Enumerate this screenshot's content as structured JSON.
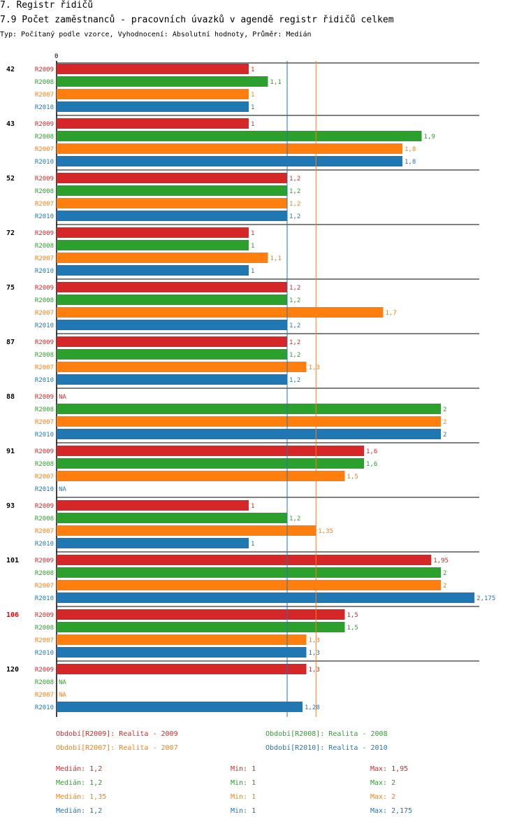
{
  "header": {
    "title": "7. Registr řidičů",
    "subtitle": "7.9 Počet zaměstnanců - pracovních úvazků v agendě registr řidičů celkem",
    "description": "Typ: Počítaný podle vzorce, Vyhodnocení: Absolutní hodnoty, Průměr: Medián"
  },
  "colors": {
    "R2009": "#d62728",
    "R2008": "#2ca02c",
    "R2007": "#ff7f0e",
    "R2010": "#1f77b4",
    "highlight_group": "#ff0000",
    "axis": "#000000"
  },
  "chart_data": {
    "type": "bar",
    "orientation": "horizontal",
    "title": "7.9 Počet zaměstnanců - pracovních úvazků v agendě registr řidičů celkem",
    "x_axis_tick_label": "0",
    "xlim": [
      0,
      2.2
    ],
    "series_order": [
      "R2009",
      "R2008",
      "R2007",
      "R2010"
    ],
    "highlighted_group": "106",
    "reference_lines": [
      {
        "series": "R2010",
        "label": "Medián",
        "value": 1.2
      },
      {
        "series": "R2007",
        "label": "Medián",
        "value": 1.35
      }
    ],
    "groups": [
      {
        "id": "42",
        "bars": [
          {
            "s": "R2009",
            "v": 1,
            "label": "1"
          },
          {
            "s": "R2008",
            "v": 1.1,
            "label": "1,1"
          },
          {
            "s": "R2007",
            "v": 1,
            "label": "1"
          },
          {
            "s": "R2010",
            "v": 1,
            "label": "1"
          }
        ]
      },
      {
        "id": "43",
        "bars": [
          {
            "s": "R2009",
            "v": 1,
            "label": "1"
          },
          {
            "s": "R2008",
            "v": 1.9,
            "label": "1,9"
          },
          {
            "s": "R2007",
            "v": 1.8,
            "label": "1,8"
          },
          {
            "s": "R2010",
            "v": 1.8,
            "label": "1,8"
          }
        ]
      },
      {
        "id": "52",
        "bars": [
          {
            "s": "R2009",
            "v": 1.2,
            "label": "1,2"
          },
          {
            "s": "R2008",
            "v": 1.2,
            "label": "1,2"
          },
          {
            "s": "R2007",
            "v": 1.2,
            "label": "1,2"
          },
          {
            "s": "R2010",
            "v": 1.2,
            "label": "1,2"
          }
        ]
      },
      {
        "id": "72",
        "bars": [
          {
            "s": "R2009",
            "v": 1,
            "label": "1"
          },
          {
            "s": "R2008",
            "v": 1,
            "label": "1"
          },
          {
            "s": "R2007",
            "v": 1.1,
            "label": "1,1"
          },
          {
            "s": "R2010",
            "v": 1,
            "label": "1"
          }
        ]
      },
      {
        "id": "75",
        "bars": [
          {
            "s": "R2009",
            "v": 1.2,
            "label": "1,2"
          },
          {
            "s": "R2008",
            "v": 1.2,
            "label": "1,2"
          },
          {
            "s": "R2007",
            "v": 1.7,
            "label": "1,7"
          },
          {
            "s": "R2010",
            "v": 1.2,
            "label": "1,2"
          }
        ]
      },
      {
        "id": "87",
        "bars": [
          {
            "s": "R2009",
            "v": 1.2,
            "label": "1,2"
          },
          {
            "s": "R2008",
            "v": 1.2,
            "label": "1,2"
          },
          {
            "s": "R2007",
            "v": 1.3,
            "label": "1,3"
          },
          {
            "s": "R2010",
            "v": 1.2,
            "label": "1,2"
          }
        ]
      },
      {
        "id": "88",
        "bars": [
          {
            "s": "R2009",
            "v": null,
            "label": "NA"
          },
          {
            "s": "R2008",
            "v": 2,
            "label": "2"
          },
          {
            "s": "R2007",
            "v": 2,
            "label": "2"
          },
          {
            "s": "R2010",
            "v": 2,
            "label": "2"
          }
        ]
      },
      {
        "id": "91",
        "bars": [
          {
            "s": "R2009",
            "v": 1.6,
            "label": "1,6"
          },
          {
            "s": "R2008",
            "v": 1.6,
            "label": "1,6"
          },
          {
            "s": "R2007",
            "v": 1.5,
            "label": "1,5"
          },
          {
            "s": "R2010",
            "v": null,
            "label": "NA"
          }
        ]
      },
      {
        "id": "93",
        "bars": [
          {
            "s": "R2009",
            "v": 1,
            "label": "1"
          },
          {
            "s": "R2008",
            "v": 1.2,
            "label": "1,2"
          },
          {
            "s": "R2007",
            "v": 1.35,
            "label": "1,35"
          },
          {
            "s": "R2010",
            "v": 1,
            "label": "1"
          }
        ]
      },
      {
        "id": "101",
        "bars": [
          {
            "s": "R2009",
            "v": 1.95,
            "label": "1,95"
          },
          {
            "s": "R2008",
            "v": 2,
            "label": "2"
          },
          {
            "s": "R2007",
            "v": 2,
            "label": "2"
          },
          {
            "s": "R2010",
            "v": 2.175,
            "label": "2,175"
          }
        ]
      },
      {
        "id": "106",
        "bars": [
          {
            "s": "R2009",
            "v": 1.5,
            "label": "1,5"
          },
          {
            "s": "R2008",
            "v": 1.5,
            "label": "1,5"
          },
          {
            "s": "R2007",
            "v": 1.3,
            "label": "1,3"
          },
          {
            "s": "R2010",
            "v": 1.3,
            "label": "1,3"
          }
        ]
      },
      {
        "id": "120",
        "bars": [
          {
            "s": "R2009",
            "v": 1.3,
            "label": "1,3"
          },
          {
            "s": "R2008",
            "v": null,
            "label": "NA"
          },
          {
            "s": "R2007",
            "v": null,
            "label": "NA"
          },
          {
            "s": "R2010",
            "v": 1.28,
            "label": "1,28"
          }
        ]
      }
    ]
  },
  "legend": {
    "periods": [
      {
        "series": "R2009",
        "text": "Období[R2009]: Realita - 2009"
      },
      {
        "series": "R2008",
        "text": "Období[R2008]: Realita - 2008"
      },
      {
        "series": "R2007",
        "text": "Období[R2007]: Realita - 2007"
      },
      {
        "series": "R2010",
        "text": "Období[R2010]: Realita - 2010"
      }
    ],
    "stats": [
      {
        "series": "R2009",
        "median": "Medián: 1,2",
        "min": "Min: 1",
        "max": "Max: 1,95"
      },
      {
        "series": "R2008",
        "median": "Medián: 1,2",
        "min": "Min: 1",
        "max": "Max: 2"
      },
      {
        "series": "R2007",
        "median": "Medián: 1,35",
        "min": "Min: 1",
        "max": "Max: 2"
      },
      {
        "series": "R2010",
        "median": "Medián: 1,2",
        "min": "Min: 1",
        "max": "Max: 2,175"
      }
    ]
  }
}
